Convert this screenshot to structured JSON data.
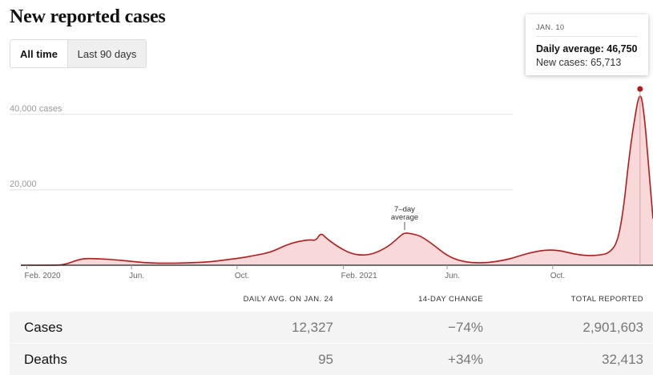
{
  "title": "New reported cases",
  "toggle": {
    "all_time": "All time",
    "last_90": "Last 90 days"
  },
  "tooltip": {
    "date": "JAN. 10",
    "daily_average": "Daily average: 46,750",
    "new_cases": "New cases: 65,713"
  },
  "annotation": {
    "line1": "7–day",
    "line2": "average"
  },
  "colors": {
    "line": "#b51a1a",
    "area": "#f8d8d8",
    "tooltip_marker": "#b51a1a",
    "grid": "#e2e2e2"
  },
  "chart_data": {
    "type": "area",
    "title": "New reported cases",
    "ylabel": "",
    "xlabel": "",
    "ylim": [
      0,
      46750
    ],
    "grid": true,
    "y_ticks": [
      {
        "value": 40000,
        "label": "40,000 cases"
      },
      {
        "value": 20000,
        "label": "20,000"
      }
    ],
    "x_ticks": [
      {
        "date": "2020-02-01",
        "label": "Feb. 2020"
      },
      {
        "date": "2020-06-01",
        "label": "Jun."
      },
      {
        "date": "2020-10-01",
        "label": "Oct."
      },
      {
        "date": "2021-02-01",
        "label": "Feb. 2021"
      },
      {
        "date": "2021-06-01",
        "label": "Jun."
      },
      {
        "date": "2021-10-01",
        "label": "Oct."
      }
    ],
    "x_range": [
      "2020-01-25",
      "2022-01-25"
    ],
    "series": [
      {
        "values_7day_avg": [
          [
            "2020-01-25",
            0
          ],
          [
            "2020-03-01",
            0
          ],
          [
            "2020-03-15",
            100
          ],
          [
            "2020-04-01",
            1500
          ],
          [
            "2020-04-10",
            1800
          ],
          [
            "2020-04-25",
            1700
          ],
          [
            "2020-05-10",
            1500
          ],
          [
            "2020-06-01",
            1000
          ],
          [
            "2020-06-20",
            600
          ],
          [
            "2020-07-15",
            500
          ],
          [
            "2020-08-15",
            700
          ],
          [
            "2020-09-01",
            900
          ],
          [
            "2020-10-01",
            1800
          ],
          [
            "2020-10-20",
            2500
          ],
          [
            "2020-11-10",
            3500
          ],
          [
            "2020-11-25",
            5200
          ],
          [
            "2020-12-10",
            6300
          ],
          [
            "2020-12-25",
            6800
          ],
          [
            "2020-12-31",
            6500
          ],
          [
            "2021-01-06",
            8600
          ],
          [
            "2021-01-12",
            7200
          ],
          [
            "2021-01-25",
            5000
          ],
          [
            "2021-02-10",
            3000
          ],
          [
            "2021-02-25",
            2600
          ],
          [
            "2021-03-10",
            3200
          ],
          [
            "2021-03-25",
            5000
          ],
          [
            "2021-04-05",
            7200
          ],
          [
            "2021-04-12",
            8600
          ],
          [
            "2021-04-20",
            8400
          ],
          [
            "2021-05-01",
            7800
          ],
          [
            "2021-05-15",
            5600
          ],
          [
            "2021-06-01",
            2500
          ],
          [
            "2021-06-15",
            1200
          ],
          [
            "2021-07-01",
            600
          ],
          [
            "2021-07-20",
            700
          ],
          [
            "2021-08-10",
            1500
          ],
          [
            "2021-08-25",
            2600
          ],
          [
            "2021-09-10",
            3600
          ],
          [
            "2021-09-25",
            4100
          ],
          [
            "2021-10-10",
            3900
          ],
          [
            "2021-10-25",
            3000
          ],
          [
            "2021-11-10",
            2500
          ],
          [
            "2021-11-25",
            2700
          ],
          [
            "2021-12-05",
            3200
          ],
          [
            "2021-12-15",
            6000
          ],
          [
            "2021-12-22",
            15000
          ],
          [
            "2021-12-28",
            28000
          ],
          [
            "2022-01-03",
            38000
          ],
          [
            "2022-01-10",
            46750
          ],
          [
            "2022-01-15",
            40000
          ],
          [
            "2022-01-20",
            26000
          ],
          [
            "2022-01-25",
            12327
          ]
        ]
      }
    ]
  },
  "table": {
    "headers": {
      "daily_avg": "DAILY AVG. ON JAN. 24",
      "change": "14-DAY CHANGE",
      "total": "TOTAL REPORTED"
    },
    "rows": [
      {
        "label": "Cases",
        "daily_avg": "12,327",
        "change": "−74%",
        "total": "2,901,603"
      },
      {
        "label": "Deaths",
        "daily_avg": "95",
        "change": "+34%",
        "total": "32,413"
      }
    ]
  }
}
